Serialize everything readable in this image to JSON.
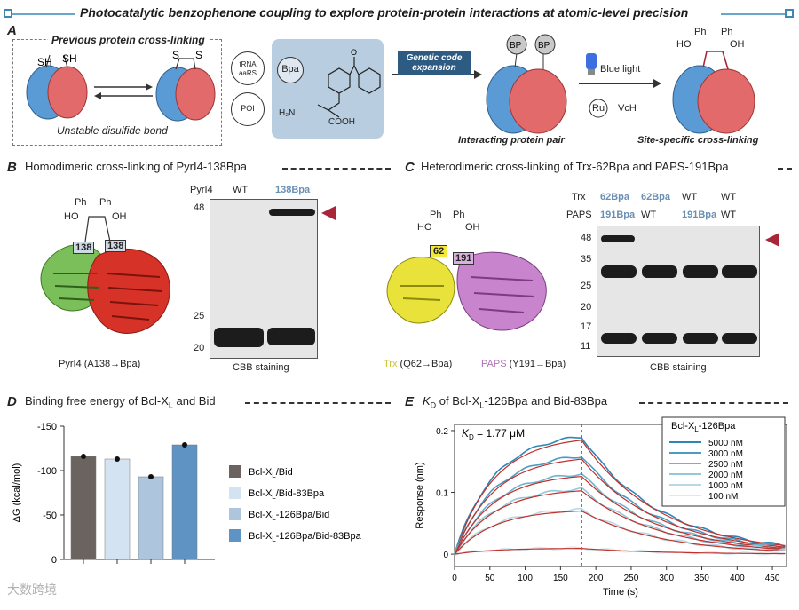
{
  "figure_title": "Photocatalytic benzophenone coupling to explore protein-protein interactions at atomic-level precision",
  "panel_a": {
    "letter": "A",
    "previous_title": "Previous protein cross-linking",
    "sh1": "SH",
    "sh2": "SH",
    "s1": "S",
    "s2": "S",
    "unstable": "Unstable disulfide bond",
    "trna": "tRNA",
    "aars": "aaRS",
    "poi": "POI",
    "bpa": "Bpa",
    "h2n": "H₂N",
    "cooh": "COOH",
    "gce": "Genetic code expansion",
    "bp1": "BP",
    "bp2": "BP",
    "blue_light": "Blue light",
    "ru": "Ru",
    "vch": "VcH",
    "pair_label": "Interacting protein pair",
    "ph1": "Ph",
    "ph2": "Ph",
    "ho": "HO",
    "oh": "OH",
    "site_label": "Site-specific cross-linking"
  },
  "panel_b": {
    "letter": "B",
    "heading": "Homodimeric cross-linking of PyrI4-138Bpa",
    "ph1": "Ph",
    "ph2": "Ph",
    "ho": "HO",
    "oh": "OH",
    "res1": "138",
    "res2": "138",
    "struct_label": "PyrI4 (A138→Bpa)",
    "gel_header": "PyrI4",
    "lane1": "WT",
    "lane2": "138Bpa",
    "marker_48": "48",
    "marker_25": "25",
    "marker_20": "20",
    "stain": "CBB staining"
  },
  "panel_c": {
    "letter": "C",
    "heading": "Heterodimeric cross-linking of Trx-62Bpa and PAPS-191Bpa",
    "ph1": "Ph",
    "ph2": "Ph",
    "ho": "HO",
    "oh": "OH",
    "res1": "62",
    "res2": "191",
    "trx_name": "Trx",
    "trx_mut": "(Q62→Bpa)",
    "paps_name": "PAPS",
    "paps_mut": "(Y191→Bpa)",
    "row_trx": "Trx",
    "row_paps": "PAPS",
    "lanes_trx": [
      "62Bpa",
      "62Bpa",
      "WT",
      "WT"
    ],
    "lanes_paps": [
      "191Bpa",
      "WT",
      "191Bpa",
      "WT"
    ],
    "markers": [
      "48",
      "35",
      "25",
      "20",
      "17",
      "11"
    ],
    "stain": "CBB staining"
  },
  "panel_d": {
    "letter": "D",
    "heading_pre": "Binding free energy of Bcl-X",
    "heading_sub": "L",
    "heading_post": " and Bid"
  },
  "panel_e": {
    "letter": "E",
    "heading_k": "K",
    "heading_ksub": "D",
    "heading_mid": " of Bcl-X",
    "heading_lsub": "L",
    "heading_post": "-126Bpa and Bid-83Bpa",
    "kd_k": "K",
    "kd_sub": "D",
    "kd_val": " = 1.77 μM",
    "legend_title_pre": "Bcl-X",
    "legend_title_sub": "L",
    "legend_title_post": "-126Bpa"
  },
  "chart_data": [
    {
      "type": "bar",
      "title": "Binding free energy of Bcl-XL and Bid",
      "ylabel": "ΔG_bind (kcal/mol)",
      "ylim": [
        0,
        -150
      ],
      "yticks": [
        "0",
        "-50",
        "-100",
        "-150"
      ],
      "categories": [
        "Bcl-XL/Bid",
        "Bcl-XL/Bid-83Bpa",
        "Bcl-XL-126Bpa/Bid",
        "Bcl-XL-126Bpa/Bid-83Bpa"
      ],
      "legend_labels": [
        {
          "pre": "Bcl-X",
          "sub": "L",
          "post": "/Bid"
        },
        {
          "pre": "Bcl-X",
          "sub": "L",
          "post": "/Bid-83Bpa"
        },
        {
          "pre": "Bcl-X",
          "sub": "L",
          "post": "-126Bpa/Bid"
        },
        {
          "pre": "Bcl-X",
          "sub": "L",
          "post": "-126Bpa/Bid-83Bpa"
        }
      ],
      "values": [
        -116,
        -113,
        -93,
        -129
      ],
      "colors": [
        "#6b6360",
        "#d4e3f1",
        "#aec5de",
        "#5e93c4"
      ]
    },
    {
      "type": "line",
      "title": "KD of Bcl-XL-126Bpa and Bid-83Bpa",
      "xlabel": "Time (s)",
      "ylabel": "Response (nm)",
      "xlim": [
        0,
        470
      ],
      "ylim": [
        -0.02,
        0.21
      ],
      "xticks": [
        0,
        50,
        100,
        150,
        200,
        250,
        300,
        350,
        400,
        450
      ],
      "yticks": [
        0,
        0.1,
        0.2
      ],
      "ytick_labels": [
        "0",
        "0.1",
        "0.2"
      ],
      "dissociation_start": 180,
      "series": [
        {
          "name": "5000 nM",
          "rmax": 0.198,
          "color": "#2e86b8"
        },
        {
          "name": "3000 nM",
          "rmax": 0.165,
          "color": "#4a9cc4"
        },
        {
          "name": "2500 nM",
          "rmax": 0.135,
          "color": "#6fb3cf"
        },
        {
          "name": "2000 nM",
          "rmax": 0.11,
          "color": "#93c7d9"
        },
        {
          "name": "1000 nM",
          "rmax": 0.075,
          "color": "#b7d8e4"
        },
        {
          "name": "100  nM",
          "rmax": 0.01,
          "color": "#d9eaf1"
        }
      ],
      "fit_color": "#c0302c"
    }
  ],
  "watermark": "大数跨境",
  "colors": {
    "accent": "#3f86b3",
    "arrow_red": "#a8263a",
    "protein_blue": "#5b9bd5",
    "protein_red": "#e26a6a"
  }
}
